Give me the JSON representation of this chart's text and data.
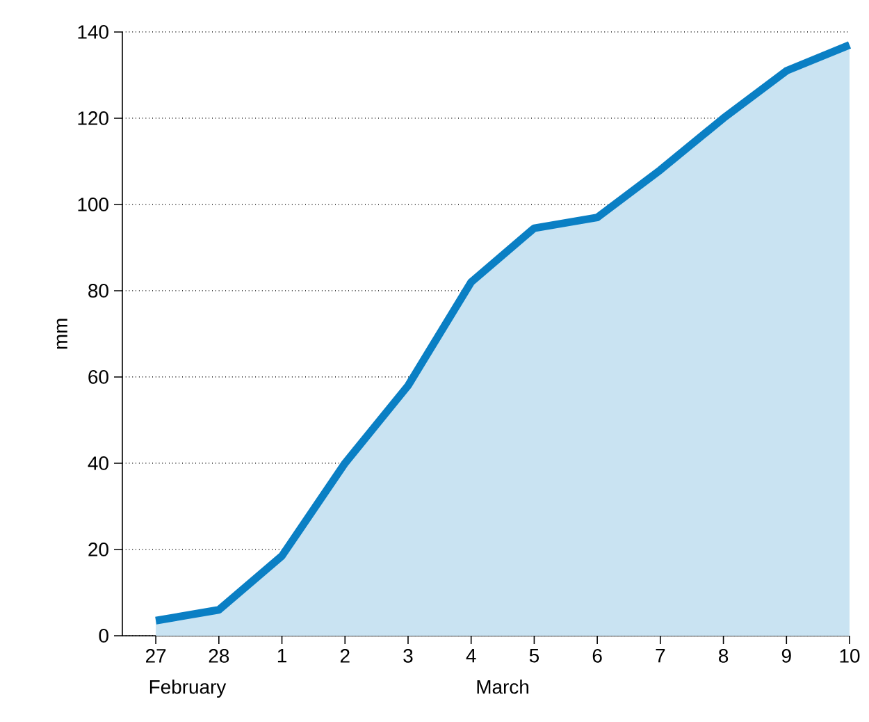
{
  "chart_data": {
    "type": "area",
    "ylabel": "mm",
    "categories": [
      "27",
      "28",
      "1",
      "2",
      "3",
      "4",
      "5",
      "6",
      "7",
      "8",
      "9",
      "10"
    ],
    "series": [
      {
        "color": "#0a7fc4",
        "values": [
          3.5,
          6,
          18.5,
          40,
          58,
          82,
          94.5,
          97,
          108,
          120,
          131,
          137
        ]
      }
    ],
    "ylim": [
      0,
      140
    ],
    "yticks": [
      0,
      20,
      40,
      60,
      80,
      100,
      120,
      140
    ],
    "grid": "y",
    "annotations": [
      "February",
      "March"
    ]
  }
}
